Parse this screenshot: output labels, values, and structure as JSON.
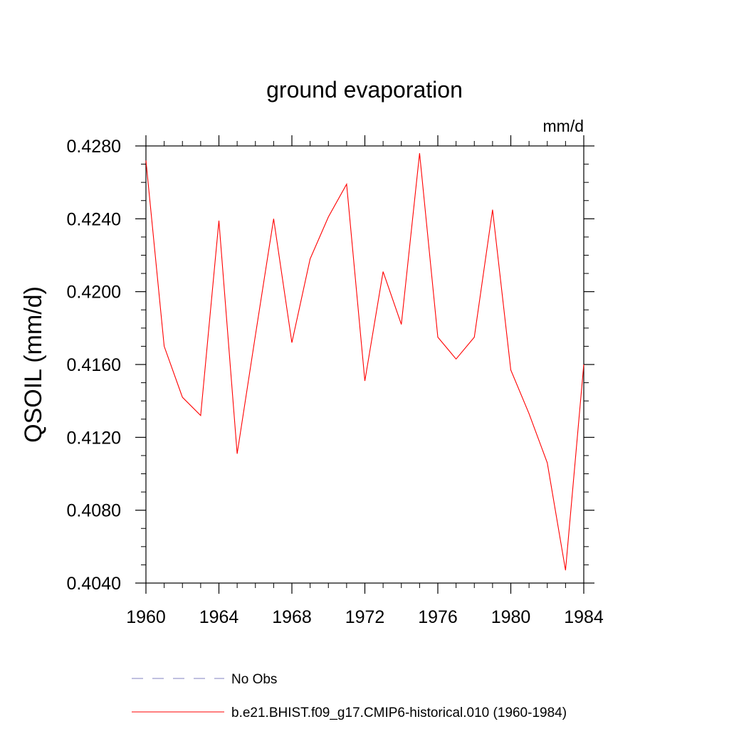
{
  "chart_data": {
    "type": "line",
    "title": "ground evaporation",
    "units": "mm/d",
    "xlabel": "",
    "ylabel": "QSOIL  (mm/d)",
    "xlim": [
      1960,
      1984
    ],
    "ylim": [
      0.404,
      0.428
    ],
    "x_ticks": [
      "1960",
      "1964",
      "1968",
      "1972",
      "1976",
      "1980",
      "1984"
    ],
    "y_ticks": [
      "0.4040",
      "0.4080",
      "0.4120",
      "0.4160",
      "0.4200",
      "0.4240",
      "0.4280"
    ],
    "grid": false,
    "legend_position": "bottom",
    "series": [
      {
        "name": "No Obs",
        "color": "#8080c0",
        "style": "dashed",
        "x": [],
        "values": []
      },
      {
        "name": "b.e21.BHIST.f09_g17.CMIP6-historical.010 (1960-1984)",
        "color": "#ff0000",
        "style": "solid",
        "x": [
          1960,
          1961,
          1962,
          1963,
          1964,
          1965,
          1966,
          1967,
          1968,
          1969,
          1970,
          1971,
          1972,
          1973,
          1974,
          1975,
          1976,
          1977,
          1978,
          1979,
          1980,
          1981,
          1982,
          1983,
          1984
        ],
        "values": [
          0.4272,
          0.417,
          0.4142,
          0.4132,
          0.4239,
          0.4111,
          0.4176,
          0.424,
          0.4172,
          0.4218,
          0.4241,
          0.4259,
          0.4151,
          0.4211,
          0.4182,
          0.4276,
          0.4175,
          0.4163,
          0.4175,
          0.4245,
          0.4157,
          0.4133,
          0.4106,
          0.4047,
          0.416
        ]
      }
    ]
  }
}
